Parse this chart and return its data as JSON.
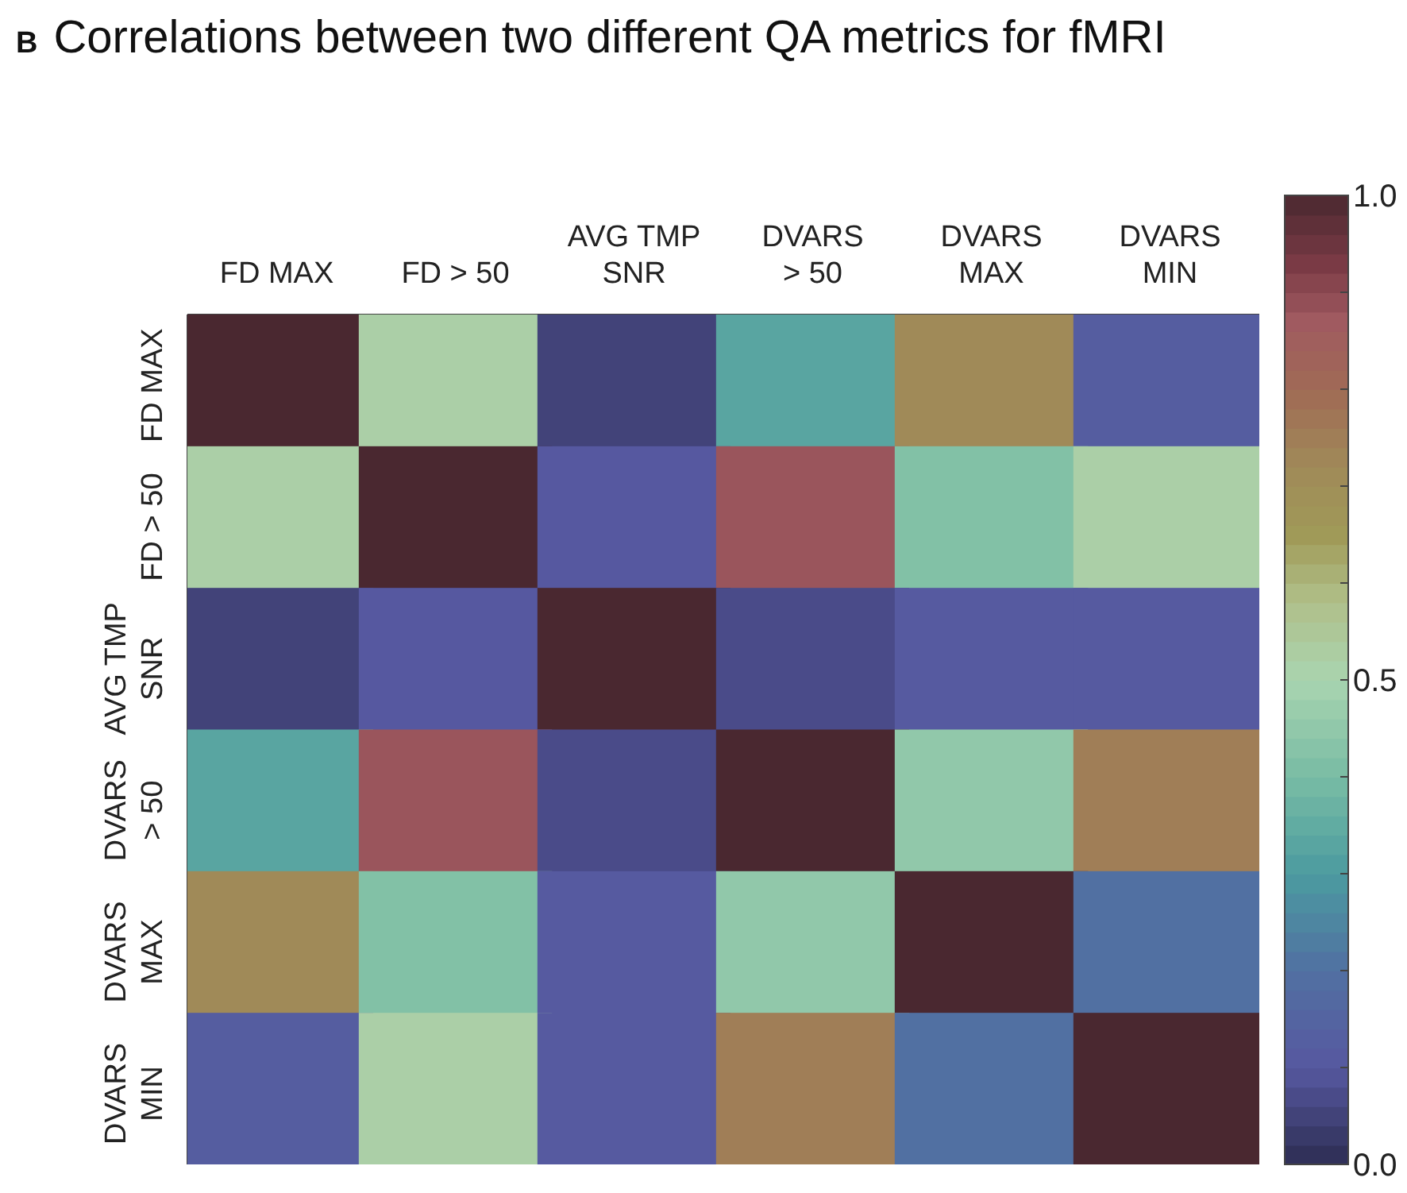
{
  "chart_data": {
    "type": "heatmap",
    "title": "Correlations between two different QA metrics for fMRI",
    "annotations": [
      "B"
    ],
    "categories": [
      "FD MAX",
      "FD > 50",
      "AVG TMP\nSNR",
      "DVARS\n> 50",
      "DVARS\nMAX",
      "DVARS\nMIN"
    ],
    "y_categories": [
      "FD MAX",
      "FD > 50",
      "AVG TMP\nSNR",
      "DVARS\n> 50",
      "DVARS\nMAX",
      "DVARS\nMIN"
    ],
    "cells": [
      [
        1.0,
        0.52,
        0.05,
        0.33,
        0.72,
        0.12
      ],
      [
        0.52,
        1.0,
        0.1,
        0.88,
        0.42,
        0.52
      ],
      [
        0.05,
        0.1,
        1.0,
        0.07,
        0.11,
        0.11
      ],
      [
        0.33,
        0.88,
        0.07,
        1.0,
        0.45,
        0.75
      ],
      [
        0.72,
        0.42,
        0.11,
        0.45,
        1.0,
        0.2
      ],
      [
        0.12,
        0.52,
        0.11,
        0.75,
        0.2,
        1.0
      ]
    ],
    "clim": [
      0,
      1
    ],
    "cticks": [
      {
        "value": 0,
        "label": "0.0"
      },
      {
        "value": 0.1,
        "label": null
      },
      {
        "value": 0.2,
        "label": null
      },
      {
        "value": 0.3,
        "label": null
      },
      {
        "value": 0.4,
        "label": null
      },
      {
        "value": 0.5,
        "label": "0.5"
      },
      {
        "value": 0.6,
        "label": null
      },
      {
        "value": 0.7,
        "label": null
      },
      {
        "value": 0.8,
        "label": null
      },
      {
        "value": 0.9,
        "label": null
      },
      {
        "value": 1,
        "label": "1.0"
      }
    ]
  }
}
